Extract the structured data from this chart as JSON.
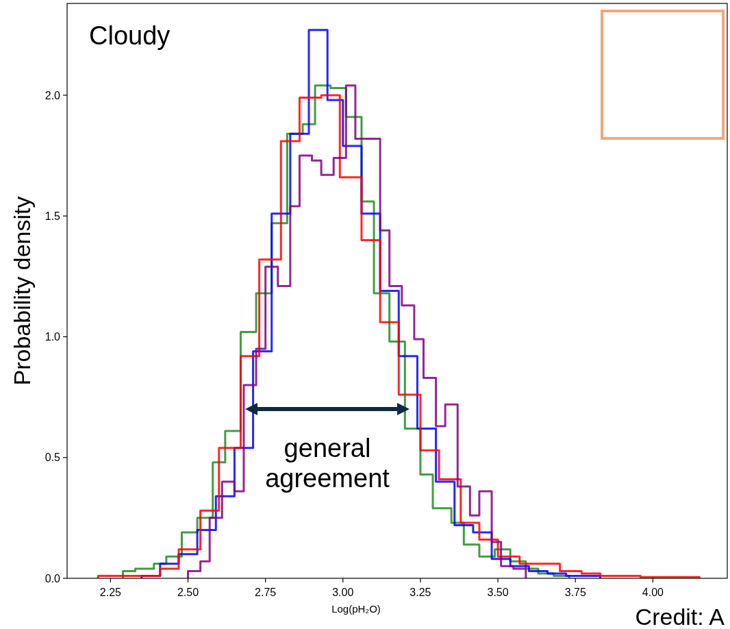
{
  "chart_data": {
    "type": "step",
    "title": "Cloudy",
    "xlabel": "Log(pH₂O)",
    "ylabel": "Probability density",
    "xlim": [
      2.11,
      4.24
    ],
    "ylim": [
      0,
      2.38
    ],
    "xticks": [
      2.25,
      {
        "value": 2.5,
        "label": "2.50"
      },
      2.75,
      {
        "value": 3,
        "label": "3.00"
      },
      3.25,
      {
        "value": 3.5,
        "label": "3.50"
      },
      3.75,
      {
        "value": 4,
        "label": "4.00"
      }
    ],
    "yticks": [
      {
        "value": 0,
        "label": "0.0"
      },
      {
        "value": 0.5,
        "label": "0.5"
      },
      {
        "value": 1,
        "label": "1.0"
      },
      {
        "value": 1.5,
        "label": "1.5"
      },
      {
        "value": 2,
        "label": "2.0"
      }
    ],
    "series": [
      {
        "color": "#228b22",
        "x": [
          2.29,
          2.29,
          2.33,
          2.39,
          2.43,
          2.48,
          2.53,
          2.58,
          2.62,
          2.67,
          2.72,
          2.77,
          2.82,
          2.87,
          2.91,
          2.96,
          3.01,
          3.06,
          3.1,
          3.15,
          3.2,
          3.25,
          3.29,
          3.35,
          3.39,
          3.44,
          3.49,
          3.54,
          3.59,
          3.63,
          3.68,
          3.73
        ],
        "values": [
          0,
          0.03,
          0.04,
          0.06,
          0.09,
          0.19,
          0.25,
          0.48,
          0.61,
          1.02,
          1.18,
          1.47,
          1.84,
          1.88,
          2.04,
          2.03,
          1.91,
          1.56,
          1.18,
          0.98,
          0.62,
          0.43,
          0.29,
          0.23,
          0.14,
          0.09,
          0.12,
          0.07,
          0.04,
          0.02,
          0.01,
          0
        ]
      },
      {
        "color": "#0000ff",
        "x": [
          2.35,
          2.35,
          2.41,
          2.47,
          2.53,
          2.59,
          2.65,
          2.71,
          2.77,
          2.83,
          2.89,
          2.95,
          3.0,
          3.06,
          3.12,
          3.18,
          3.24,
          3.3,
          3.36,
          3.42,
          3.48,
          3.54,
          3.6,
          3.66,
          3.72,
          3.83
        ],
        "values": [
          0,
          0.01,
          0.06,
          0.1,
          0.2,
          0.34,
          0.54,
          0.94,
          1.51,
          1.84,
          2.27,
          1.98,
          1.79,
          1.51,
          1.19,
          0.92,
          0.62,
          0.4,
          0.22,
          0.19,
          0.08,
          0.05,
          0.03,
          0.02,
          0.01,
          0
        ]
      },
      {
        "color": "#ff0000",
        "x": [
          2.21,
          2.21,
          2.34,
          2.41,
          2.47,
          2.54,
          2.6,
          2.67,
          2.73,
          2.8,
          2.86,
          2.93,
          2.99,
          3.06,
          3.12,
          3.18,
          3.25,
          3.31,
          3.38,
          3.44,
          3.5,
          3.57,
          3.7,
          3.77,
          3.83,
          3.96,
          4.15
        ],
        "values": [
          0,
          0.01,
          0.01,
          0.04,
          0.12,
          0.28,
          0.54,
          0.92,
          1.32,
          1.81,
          1.99,
          2.0,
          1.66,
          1.4,
          1.06,
          0.76,
          0.53,
          0.41,
          0.23,
          0.16,
          0.09,
          0.06,
          0.03,
          0.02,
          0.01,
          0.005,
          0
        ]
      },
      {
        "color": "#800080",
        "x": [
          2.5,
          2.5,
          2.54,
          2.57,
          2.61,
          2.65,
          2.68,
          2.72,
          2.75,
          2.79,
          2.83,
          2.86,
          2.9,
          2.93,
          2.97,
          3.01,
          3.04,
          3.12,
          3.15,
          3.19,
          3.23,
          3.26,
          3.3,
          3.33,
          3.37,
          3.41,
          3.44,
          3.48,
          3.51,
          3.55,
          3.59
        ],
        "values": [
          0,
          0.03,
          0.07,
          0.25,
          0.4,
          0.36,
          0.8,
          0.95,
          1.29,
          1.21,
          1.54,
          1.75,
          1.73,
          1.67,
          1.74,
          2.04,
          1.82,
          1.44,
          1.21,
          1.13,
          0.99,
          0.83,
          0.63,
          0.72,
          0.38,
          0.26,
          0.36,
          0.15,
          0.05,
          0.04,
          0
        ]
      }
    ],
    "annotations": [
      "general agreement",
      "Credit: A"
    ]
  }
}
